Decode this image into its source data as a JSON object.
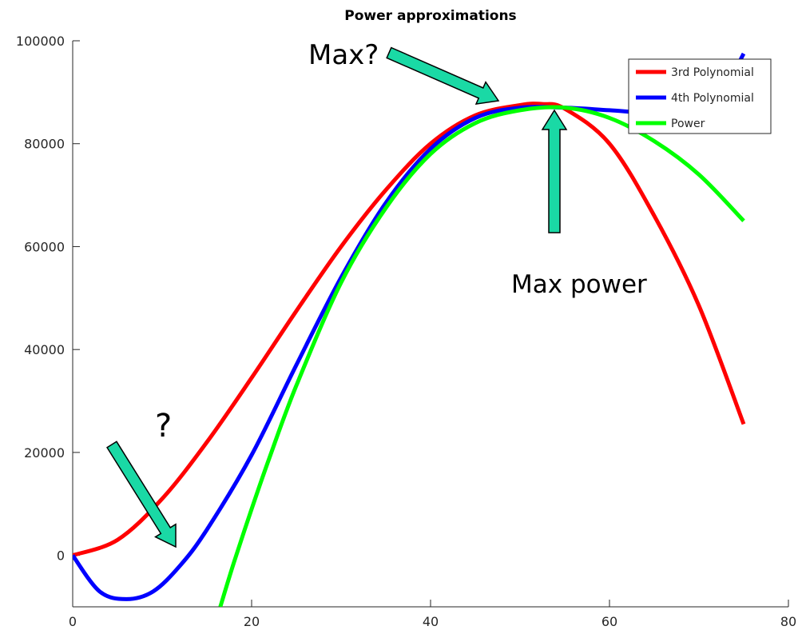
{
  "chart_data": {
    "type": "line",
    "title": "Power approximations",
    "xlabel": "",
    "ylabel": "",
    "xlim": [
      0,
      80
    ],
    "ylim": [
      -10000,
      100000
    ],
    "x_ticks": [
      "0",
      "20",
      "40",
      "60",
      "80"
    ],
    "y_ticks": [
      "0",
      "20000",
      "40000",
      "60000",
      "80000",
      "100000"
    ],
    "x_tick_values": [
      0,
      20,
      40,
      60,
      80
    ],
    "y_tick_values": [
      0,
      20000,
      40000,
      60000,
      80000,
      100000
    ],
    "grid": false,
    "legend_position": "top-right",
    "series": [
      {
        "name": "3rd Polynomial",
        "color": "#ff0000",
        "x": [
          0,
          5,
          10,
          15,
          20,
          25,
          30,
          35,
          40,
          45,
          50,
          52.5,
          55,
          60,
          65,
          70,
          75
        ],
        "y": [
          0,
          3000,
          11000,
          22000,
          34500,
          47500,
          60000,
          71000,
          80000,
          85500,
          87500,
          87700,
          86800,
          80000,
          66000,
          48500,
          25500
        ]
      },
      {
        "name": "4th Polynomial",
        "color": "#0000ff",
        "x": [
          0,
          3,
          6,
          9,
          12,
          15,
          20,
          25,
          30,
          35,
          40,
          45,
          50,
          55,
          60,
          65,
          70,
          72,
          75
        ],
        "y": [
          0,
          -7000,
          -8500,
          -7000,
          -2000,
          5000,
          19500,
          37000,
          54000,
          68500,
          79000,
          85000,
          87000,
          87000,
          86500,
          86000,
          86500,
          88000,
          97500
        ]
      },
      {
        "name": "Power",
        "color": "#00ff00",
        "x": [
          16.5,
          18,
          20,
          22,
          25,
          30,
          35,
          40,
          45,
          50,
          55,
          60,
          65,
          70,
          75
        ],
        "y": [
          -10000,
          -1500,
          9000,
          19000,
          33000,
          53000,
          67500,
          78000,
          84000,
          86500,
          87000,
          85000,
          80500,
          74000,
          65000
        ]
      }
    ],
    "annotations": [
      {
        "text": "Max?"
      },
      {
        "text": "Max power"
      },
      {
        "text": "?"
      }
    ],
    "arrow_color": "#1ad9a5"
  }
}
